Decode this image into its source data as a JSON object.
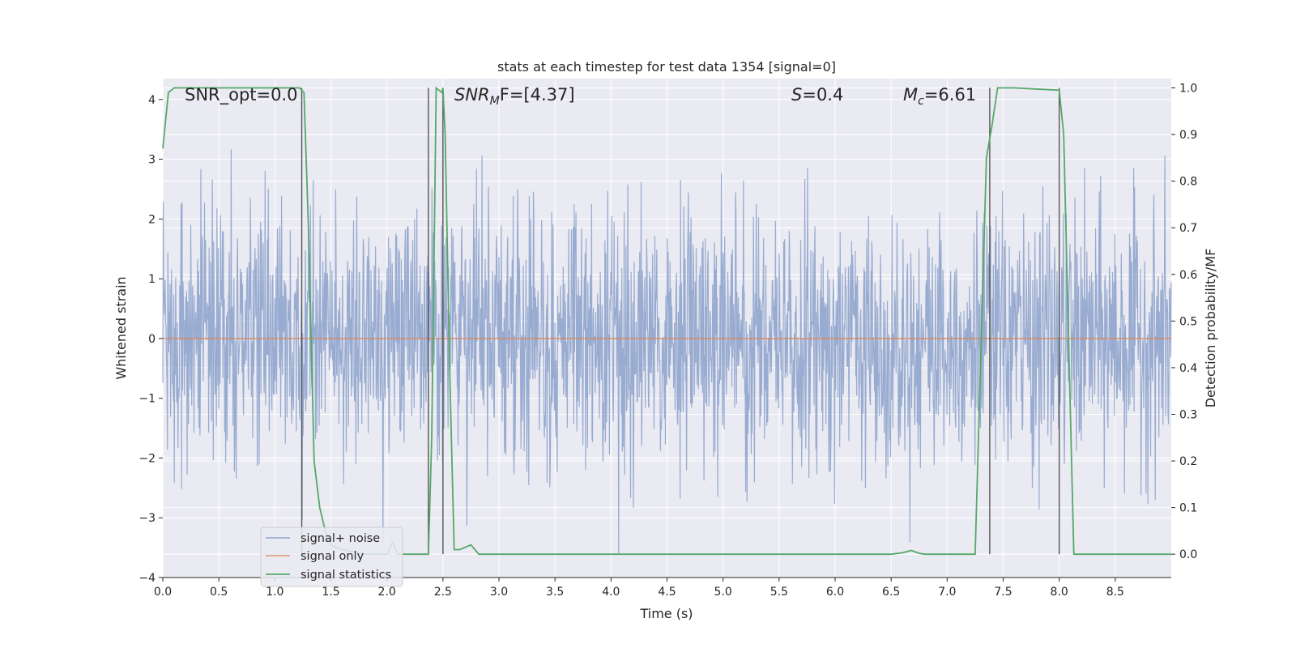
{
  "chart_data": {
    "type": "line",
    "title": "stats at each timestep for test data 1354 [signal=0]",
    "xlabel": "Time (s)",
    "ylabel_left": "Whitened strain",
    "ylabel_right": "Detection probability/MF",
    "xlim": [
      0.0,
      9.0
    ],
    "ylim_left": [
      -4.0,
      4.35
    ],
    "ylim_right": [
      -0.05,
      1.02
    ],
    "xticks": [
      "0.0",
      "0.5",
      "1.0",
      "1.5",
      "2.0",
      "2.5",
      "3.0",
      "3.5",
      "4.0",
      "4.5",
      "5.0",
      "5.5",
      "6.0",
      "6.5",
      "7.0",
      "7.5",
      "8.0",
      "8.5"
    ],
    "yticks_left": [
      "4",
      "3",
      "2",
      "1",
      "0",
      "−1",
      "−2",
      "−3",
      "−4"
    ],
    "yticks_right": [
      "1.0",
      "0.9",
      "0.8",
      "0.7",
      "0.6",
      "0.5",
      "0.4",
      "0.3",
      "0.2",
      "0.1",
      "0.0"
    ],
    "grid": true,
    "legend_position": "lower-left",
    "legend": [
      "signal+ noise",
      "signal only",
      "signal statistics"
    ],
    "annotations": {
      "snr_opt": "SNR_opt=0.0",
      "snr_mf_main": "SNR",
      "snr_mf_sub": "M",
      "snr_mf_rest": "F=[4.37]",
      "s_main": "S",
      "s_rest": "=0.4",
      "mc_main": "M",
      "mc_sub": "c",
      "mc_rest": "=6.61"
    },
    "colors": {
      "plot_bg": "#eaeaf2",
      "grid": "#ffffff",
      "noise": "#8fa4cc",
      "signal": "#dd8452",
      "stats": "#55a868",
      "trigger": "#555555"
    },
    "series": [
      {
        "name": "signal+ noise",
        "description_values": "dense whitened noise, roughly Gaussian with peaks between -3.6 and 4.0"
      },
      {
        "name": "signal only",
        "values": "constant 0.0"
      },
      {
        "name": "signal statistics",
        "x": [
          0.0,
          0.05,
          0.1,
          0.2,
          0.5,
          1.0,
          1.22,
          1.26,
          1.3,
          1.35,
          1.4,
          1.45,
          1.5,
          1.6,
          1.8,
          2.0,
          2.05,
          2.1,
          2.2,
          2.3,
          2.37,
          2.4,
          2.44,
          2.49,
          2.5,
          2.52,
          2.56,
          2.6,
          2.65,
          2.75,
          2.82,
          3.0,
          4.0,
          5.0,
          6.0,
          6.5,
          6.6,
          6.68,
          6.75,
          6.8,
          7.0,
          7.25,
          7.35,
          7.4,
          7.45,
          7.6,
          8.0,
          8.04,
          8.09,
          8.13,
          8.2,
          8.5,
          9.0
        ],
        "y": [
          0.87,
          0.99,
          1.0,
          1.0,
          1.0,
          1.0,
          1.0,
          0.99,
          0.7,
          0.2,
          0.1,
          0.05,
          0.02,
          0.01,
          0.0,
          0.0,
          0.025,
          0.0,
          0.0,
          0.0,
          0.0,
          0.25,
          1.0,
          0.99,
          1.0,
          0.9,
          0.4,
          0.01,
          0.01,
          0.02,
          0.0,
          0.0,
          0.0,
          0.0,
          0.0,
          0.0,
          0.003,
          0.008,
          0.002,
          0.0,
          0.0,
          0.0,
          0.85,
          0.92,
          1.0,
          1.0,
          0.995,
          0.9,
          0.4,
          0.0,
          0.0,
          0.0,
          0.0
        ]
      }
    ],
    "trigger_lines_x": [
      1.24,
      2.37,
      2.5,
      7.38,
      8.0
    ]
  }
}
